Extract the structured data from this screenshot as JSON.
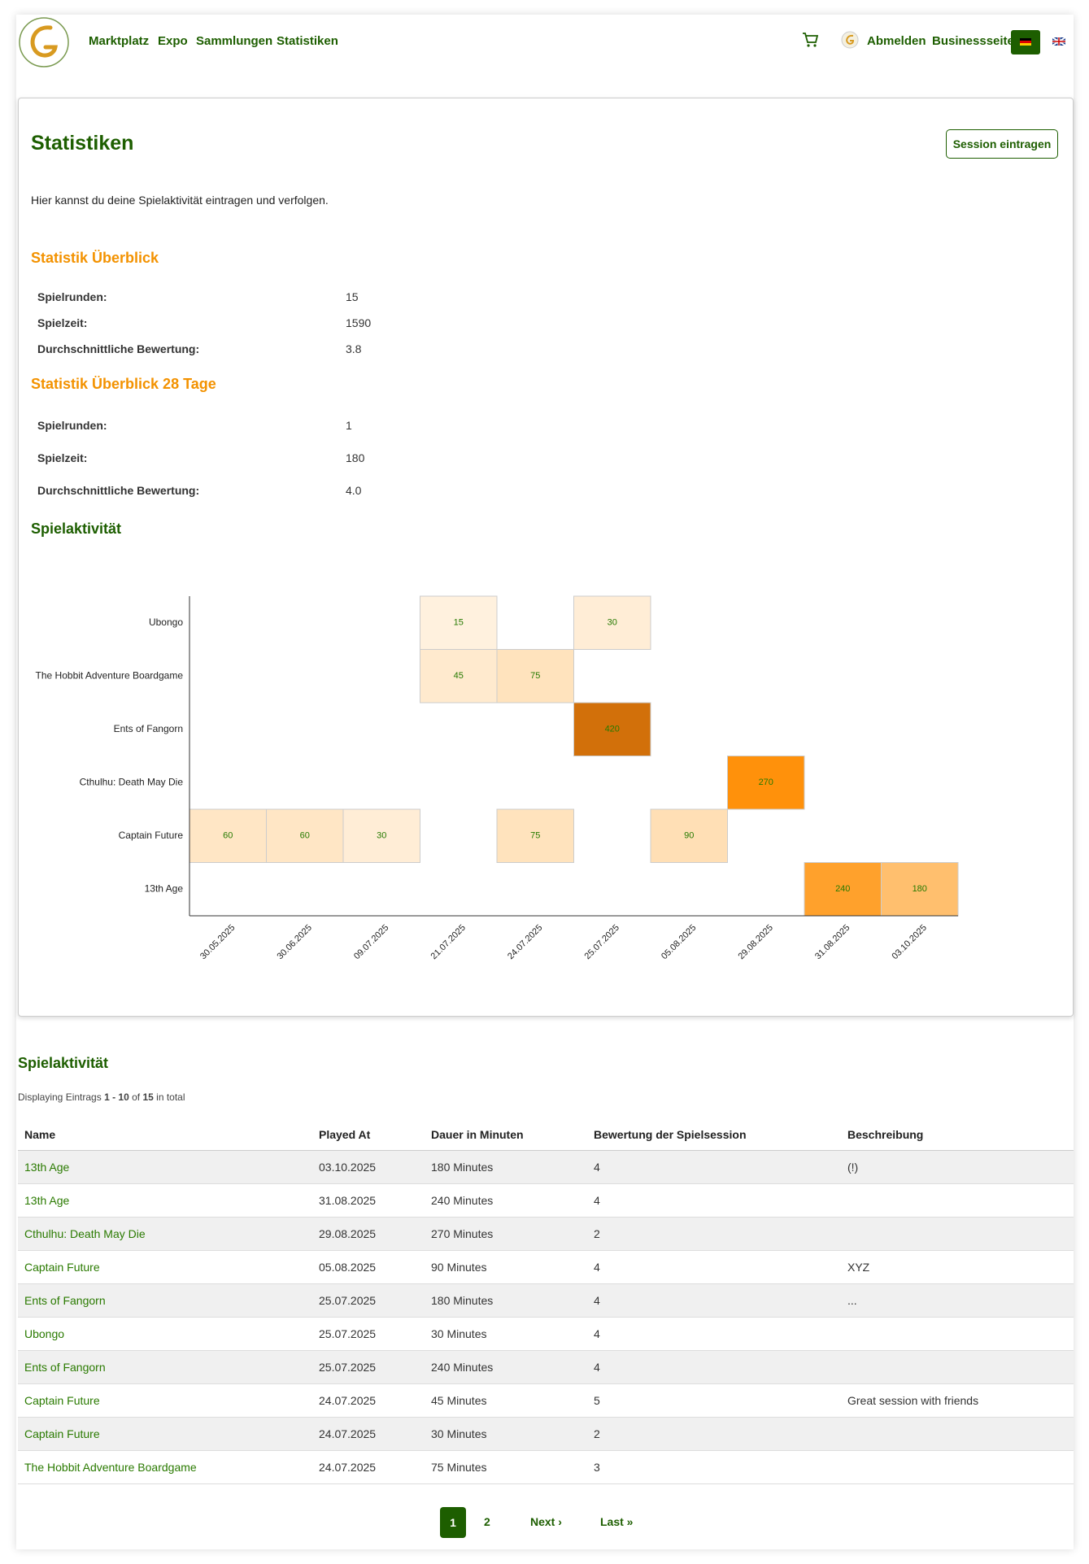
{
  "nav": {
    "links": [
      "Marktplatz",
      "Expo",
      "Sammlungen",
      "Statistiken"
    ],
    "logout": "Abmelden",
    "business": "Businessseite"
  },
  "header": {
    "title": "Statistiken",
    "button": "Session eintragen",
    "description": "Hier kannst du deine Spielaktivität eintragen und verfolgen."
  },
  "overview": {
    "title": "Statistik Überblick",
    "rows": [
      [
        "Spielrunden:",
        15
      ],
      [
        "Spielzeit:",
        1590
      ],
      [
        "Durchschnittliche Bewertung:",
        3.8
      ]
    ]
  },
  "overview_28": {
    "title": "Statistik Überblick 28 Tage",
    "rows": [
      [
        "Spielrunden:",
        1
      ],
      [
        "Spielzeit:",
        180
      ],
      [
        "Durchschnittliche Bewertung:",
        "4.0"
      ]
    ]
  },
  "chart_data": {
    "type": "heatmap",
    "title": "Spielaktivität",
    "x": [
      "30.05.2025",
      "30.06.2025",
      "09.07.2025",
      "21.07.2025",
      "24.07.2025",
      "25.07.2025",
      "05.08.2025",
      "29.08.2025",
      "31.08.2025",
      "03.10.2025"
    ],
    "y": [
      "Ubongo",
      "The Hobbit Adventure Boardgame",
      "Ents of Fangorn",
      "Cthulhu: Death May Die",
      "Captain Future",
      "13th Age"
    ],
    "values": [
      [
        null,
        null,
        null,
        15,
        null,
        30,
        null,
        null,
        null,
        null
      ],
      [
        null,
        null,
        null,
        45,
        75,
        null,
        null,
        null,
        null,
        null
      ],
      [
        null,
        null,
        null,
        null,
        null,
        420,
        null,
        null,
        null,
        null
      ],
      [
        null,
        null,
        null,
        null,
        null,
        null,
        null,
        270,
        null,
        null
      ],
      [
        60,
        60,
        30,
        null,
        75,
        null,
        90,
        null,
        null,
        null
      ],
      [
        null,
        null,
        null,
        null,
        null,
        null,
        null,
        null,
        240,
        180
      ]
    ],
    "color_scale": [
      "#fff4e6",
      "#ffd49a",
      "#ff8c00",
      "#d2700a"
    ],
    "label_color": "#267a00"
  },
  "table": {
    "title": "Spielaktivität",
    "summary": {
      "prefix": "Displaying Eintrags",
      "range": "1 - 10",
      "of": "of",
      "total": 15,
      "suffix": "in total"
    },
    "columns": [
      "Name",
      "Played At",
      "Dauer in Minuten",
      "Bewertung der Spielsession",
      "Beschreibung"
    ],
    "rows": [
      [
        "13th Age",
        "03.10.2025",
        "180 Minutes",
        4,
        "(!)"
      ],
      [
        "13th Age",
        "31.08.2025",
        "240 Minutes",
        4,
        null
      ],
      [
        "Cthulhu: Death May Die",
        "29.08.2025",
        "270 Minutes",
        2,
        null
      ],
      [
        "Captain Future",
        "05.08.2025",
        "90 Minutes",
        4,
        "XYZ"
      ],
      [
        "Ents of Fangorn",
        "25.07.2025",
        "180 Minutes",
        4,
        "..."
      ],
      [
        "Ubongo",
        "25.07.2025",
        "30 Minutes",
        4,
        null
      ],
      [
        "Ents of Fangorn",
        "25.07.2025",
        "240 Minutes",
        4,
        null
      ],
      [
        "Captain Future",
        "24.07.2025",
        "45 Minutes",
        5,
        "Great session with friends"
      ],
      [
        "Captain Future",
        "24.07.2025",
        "30 Minutes",
        2,
        null
      ],
      [
        "The Hobbit Adventure Boardgame",
        "24.07.2025",
        "75 Minutes",
        3,
        null
      ]
    ]
  },
  "pagination": {
    "pages": [
      1,
      2
    ],
    "next": "Next ›",
    "last": "Last »"
  }
}
